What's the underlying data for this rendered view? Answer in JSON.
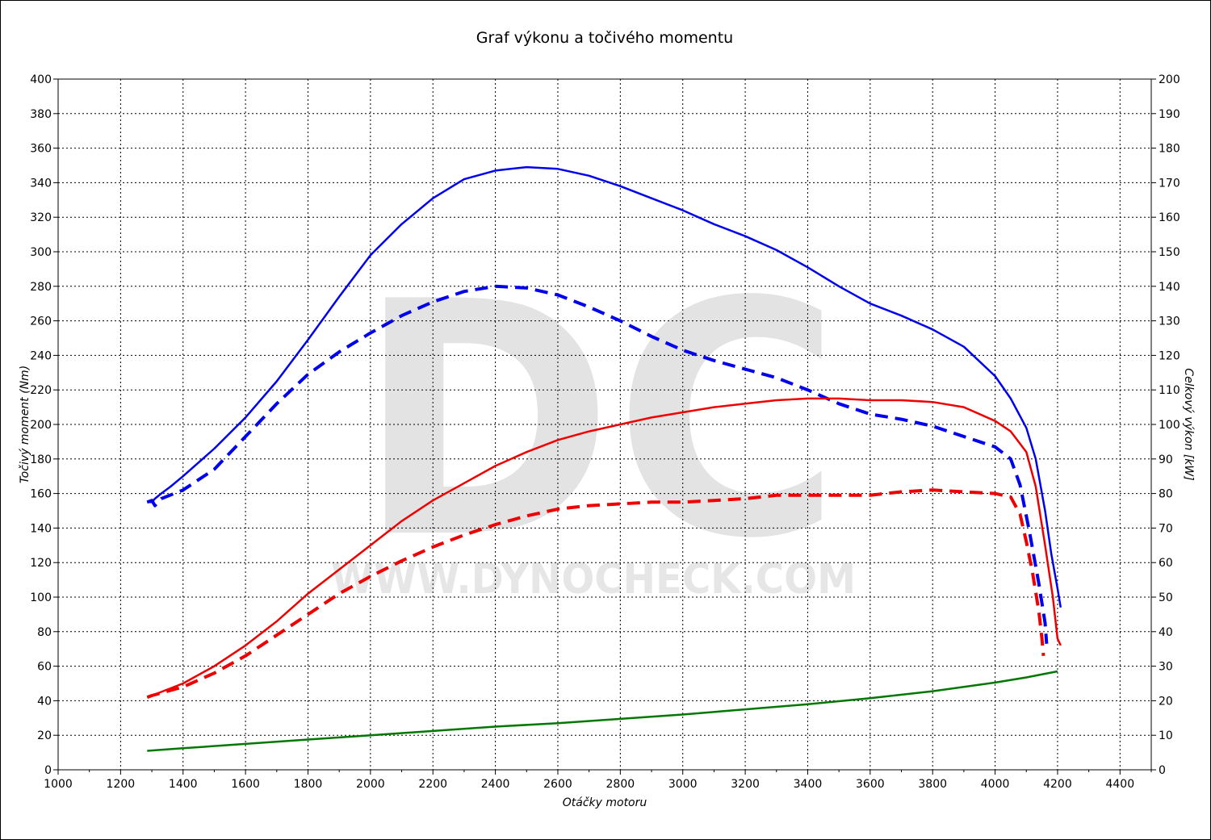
{
  "chart_data": {
    "type": "line",
    "title": "Graf výkonu a točivého momentu",
    "xlabel": "Otáčky motoru",
    "ylabel_left": "Točivý moment (Nm)",
    "ylabel_right": "Celkový výkon [kW]",
    "xlim": [
      1000,
      4500
    ],
    "ylim_left": [
      0,
      400
    ],
    "ylim_right": [
      0,
      200
    ],
    "x_ticks": [
      1000,
      1200,
      1400,
      1600,
      1800,
      2000,
      2200,
      2400,
      2600,
      2800,
      3000,
      3200,
      3400,
      3600,
      3800,
      4000,
      4200,
      4400
    ],
    "y_left_ticks": [
      0,
      20,
      40,
      60,
      80,
      100,
      120,
      140,
      160,
      180,
      200,
      220,
      240,
      260,
      280,
      300,
      320,
      340,
      360,
      380,
      400
    ],
    "y_right_ticks": [
      0,
      10,
      20,
      30,
      40,
      50,
      60,
      70,
      80,
      90,
      100,
      110,
      120,
      130,
      140,
      150,
      160,
      170,
      180,
      190,
      200
    ],
    "grid": true,
    "legend": "none",
    "watermark": {
      "letters": "DC",
      "url": "WWW.DYNOCHECK.COM"
    },
    "series": [
      {
        "color": "#0000ee",
        "style": "solid",
        "axis": "left",
        "points": [
          [
            1285,
            155
          ],
          [
            1300,
            155
          ],
          [
            1310,
            157
          ],
          [
            1330,
            160
          ],
          [
            1360,
            164
          ],
          [
            1400,
            170
          ],
          [
            1450,
            178
          ],
          [
            1500,
            186
          ],
          [
            1600,
            204
          ],
          [
            1700,
            225
          ],
          [
            1800,
            249
          ],
          [
            1900,
            274
          ],
          [
            2000,
            298
          ],
          [
            2100,
            316
          ],
          [
            2200,
            331
          ],
          [
            2300,
            342
          ],
          [
            2400,
            347
          ],
          [
            2500,
            349
          ],
          [
            2600,
            348
          ],
          [
            2700,
            344
          ],
          [
            2800,
            338
          ],
          [
            2900,
            331
          ],
          [
            3000,
            324
          ],
          [
            3100,
            316
          ],
          [
            3200,
            309
          ],
          [
            3300,
            301
          ],
          [
            3400,
            291
          ],
          [
            3500,
            280
          ],
          [
            3600,
            270
          ],
          [
            3700,
            263
          ],
          [
            3800,
            255
          ],
          [
            3900,
            245
          ],
          [
            4000,
            228
          ],
          [
            4050,
            215
          ],
          [
            4100,
            198
          ],
          [
            4130,
            180
          ],
          [
            4160,
            150
          ],
          [
            4180,
            125
          ],
          [
            4200,
            105
          ],
          [
            4210,
            94
          ]
        ]
      },
      {
        "color": "#0000ee",
        "style": "dashed",
        "axis": "left",
        "points": [
          [
            1285,
            155
          ],
          [
            1300,
            156
          ],
          [
            1310,
            153
          ],
          [
            1330,
            157
          ],
          [
            1400,
            162
          ],
          [
            1500,
            174
          ],
          [
            1600,
            193
          ],
          [
            1700,
            212
          ],
          [
            1800,
            229
          ],
          [
            1900,
            242
          ],
          [
            2000,
            253
          ],
          [
            2100,
            263
          ],
          [
            2200,
            271
          ],
          [
            2300,
            277
          ],
          [
            2400,
            280
          ],
          [
            2500,
            279
          ],
          [
            2600,
            275
          ],
          [
            2700,
            268
          ],
          [
            2800,
            260
          ],
          [
            2900,
            251
          ],
          [
            3000,
            243
          ],
          [
            3100,
            237
          ],
          [
            3200,
            232
          ],
          [
            3300,
            227
          ],
          [
            3400,
            220
          ],
          [
            3500,
            212
          ],
          [
            3600,
            206
          ],
          [
            3700,
            203
          ],
          [
            3800,
            199
          ],
          [
            3900,
            193
          ],
          [
            4000,
            187
          ],
          [
            4050,
            180
          ],
          [
            4080,
            165
          ],
          [
            4110,
            138
          ],
          [
            4140,
            108
          ],
          [
            4160,
            85
          ],
          [
            4165,
            73
          ]
        ]
      },
      {
        "color": "#ee0000",
        "style": "solid",
        "axis": "right",
        "points": [
          [
            1285,
            21
          ],
          [
            1300,
            21.5
          ],
          [
            1400,
            25
          ],
          [
            1500,
            30
          ],
          [
            1600,
            36
          ],
          [
            1700,
            43
          ],
          [
            1800,
            51
          ],
          [
            1900,
            58
          ],
          [
            2000,
            65
          ],
          [
            2100,
            72
          ],
          [
            2200,
            78
          ],
          [
            2300,
            83
          ],
          [
            2400,
            88
          ],
          [
            2500,
            92
          ],
          [
            2600,
            95.5
          ],
          [
            2700,
            98
          ],
          [
            2800,
            100
          ],
          [
            2900,
            102
          ],
          [
            3000,
            103.5
          ],
          [
            3100,
            105
          ],
          [
            3200,
            106
          ],
          [
            3300,
            107
          ],
          [
            3400,
            107.5
          ],
          [
            3500,
            107.5
          ],
          [
            3600,
            107
          ],
          [
            3700,
            107
          ],
          [
            3800,
            106.5
          ],
          [
            3900,
            105
          ],
          [
            4000,
            101
          ],
          [
            4050,
            98
          ],
          [
            4100,
            92
          ],
          [
            4130,
            82
          ],
          [
            4160,
            65
          ],
          [
            4185,
            50
          ],
          [
            4200,
            38
          ],
          [
            4210,
            36
          ]
        ]
      },
      {
        "color": "#ee0000",
        "style": "dashed",
        "axis": "right",
        "points": [
          [
            1285,
            21
          ],
          [
            1300,
            21.5
          ],
          [
            1400,
            24
          ],
          [
            1500,
            28
          ],
          [
            1600,
            33
          ],
          [
            1700,
            39
          ],
          [
            1800,
            45
          ],
          [
            1900,
            51
          ],
          [
            2000,
            56
          ],
          [
            2100,
            60.5
          ],
          [
            2200,
            64.5
          ],
          [
            2300,
            68
          ],
          [
            2400,
            71
          ],
          [
            2500,
            73.5
          ],
          [
            2600,
            75.5
          ],
          [
            2700,
            76.5
          ],
          [
            2800,
            77
          ],
          [
            2900,
            77.5
          ],
          [
            3000,
            77.5
          ],
          [
            3100,
            78
          ],
          [
            3200,
            78.5
          ],
          [
            3300,
            79.5
          ],
          [
            3400,
            79.5
          ],
          [
            3500,
            79.5
          ],
          [
            3600,
            79.5
          ],
          [
            3700,
            80.5
          ],
          [
            3800,
            81
          ],
          [
            3900,
            80.5
          ],
          [
            4000,
            80
          ],
          [
            4050,
            79
          ],
          [
            4080,
            74
          ],
          [
            4100,
            66
          ],
          [
            4120,
            57
          ],
          [
            4140,
            46
          ],
          [
            4150,
            38
          ],
          [
            4155,
            33
          ]
        ]
      },
      {
        "color": "#007700",
        "style": "solid",
        "axis": "left",
        "points": [
          [
            1285,
            11
          ],
          [
            1400,
            12.5
          ],
          [
            1600,
            15
          ],
          [
            1800,
            17.5
          ],
          [
            2000,
            20
          ],
          [
            2200,
            22.5
          ],
          [
            2400,
            25
          ],
          [
            2600,
            27
          ],
          [
            2800,
            29.5
          ],
          [
            3000,
            32
          ],
          [
            3200,
            35
          ],
          [
            3400,
            38
          ],
          [
            3600,
            41.5
          ],
          [
            3800,
            45.5
          ],
          [
            4000,
            50.5
          ],
          [
            4100,
            53.5
          ],
          [
            4200,
            57
          ]
        ]
      }
    ]
  }
}
